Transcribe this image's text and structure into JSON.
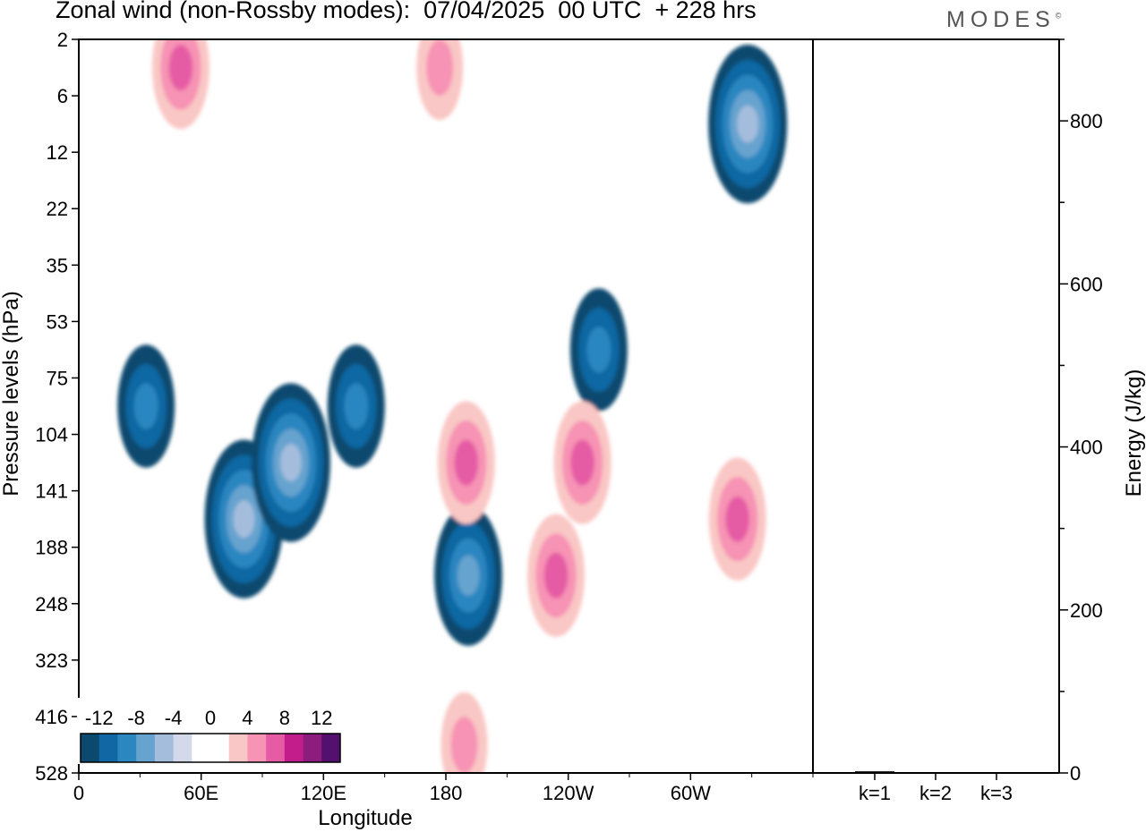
{
  "title": "Zonal wind (non-Rossby modes):  07/04/2025  00 UTC  + 228 hrs",
  "logo": "MODES",
  "logo_mark": "©",
  "colors": {
    "neg": [
      "#0b4a6e",
      "#1167a3",
      "#2c86c0",
      "#66a3cf",
      "#a4bddc",
      "#d3d8ea"
    ],
    "pos": [
      "#f9c7c5",
      "#f793b4",
      "#e55ca4",
      "#c21d8a",
      "#8c1d7c",
      "#53106e"
    ],
    "zero": "#ffffff"
  },
  "chart_data": [
    {
      "type": "heatmap",
      "title": "Zonal wind (non-Rossby modes):  07/04/2025  00 UTC  + 228 hrs",
      "xlabel": "Longitude",
      "ylabel": "Pressure levels (hPa)",
      "x_ticks": [
        "0",
        "60E",
        "120E",
        "180",
        "120W",
        "60W"
      ],
      "x_tick_degrees": [
        0,
        60,
        120,
        180,
        240,
        300
      ],
      "xlim": [
        0,
        360
      ],
      "y_ticks": [
        "2",
        "6",
        "12",
        "22",
        "35",
        "53",
        "75",
        "104",
        "141",
        "188",
        "248",
        "323",
        "416",
        "528"
      ],
      "y_scale": "model levels (non-linear, top 2 hPa, bottom 528 hPa)",
      "colorbar_labels": [
        "-12",
        "-8",
        "-4",
        "0",
        "4",
        "8",
        "12"
      ],
      "colorbar_levels": [
        -14,
        -12,
        -10,
        -8,
        -6,
        -4,
        -2,
        2,
        4,
        6,
        8,
        10,
        12,
        14
      ],
      "anomalies": [
        {
          "lon": 81,
          "lev": "141-188",
          "value": -10
        },
        {
          "lon": 104,
          "lev": "104-141",
          "value": -10
        },
        {
          "lon": 136,
          "lev": "75-104",
          "value": -6
        },
        {
          "lon": 33,
          "lev": "75-104",
          "value": -6
        },
        {
          "lon": 191,
          "lev": "188-248",
          "value": -8
        },
        {
          "lon": 328,
          "lev": "6-12",
          "value": -10
        },
        {
          "lon": 255,
          "lev": "53-75",
          "value": -6
        },
        {
          "lon": 190,
          "lev": "104-141",
          "value": 7
        },
        {
          "lon": 234,
          "lev": "188-248",
          "value": 7
        },
        {
          "lon": 247,
          "lev": "104-141",
          "value": 7
        },
        {
          "lon": 323,
          "lev": "141-188",
          "value": 7
        },
        {
          "lon": 50,
          "lev": "2-6",
          "value": 6
        },
        {
          "lon": 177,
          "lev": "2-6",
          "value": 5
        },
        {
          "lon": 189,
          "lev": "416-528",
          "value": 4
        }
      ]
    },
    {
      "type": "bar",
      "categories": [
        "k=1",
        "k=2",
        "k=3"
      ],
      "values": [
        2,
        1,
        1
      ],
      "ylabel": "Energy (J/kg)",
      "ylim": [
        0,
        900
      ],
      "y_ticks": [
        "0",
        "200",
        "400",
        "600",
        "800"
      ]
    }
  ]
}
